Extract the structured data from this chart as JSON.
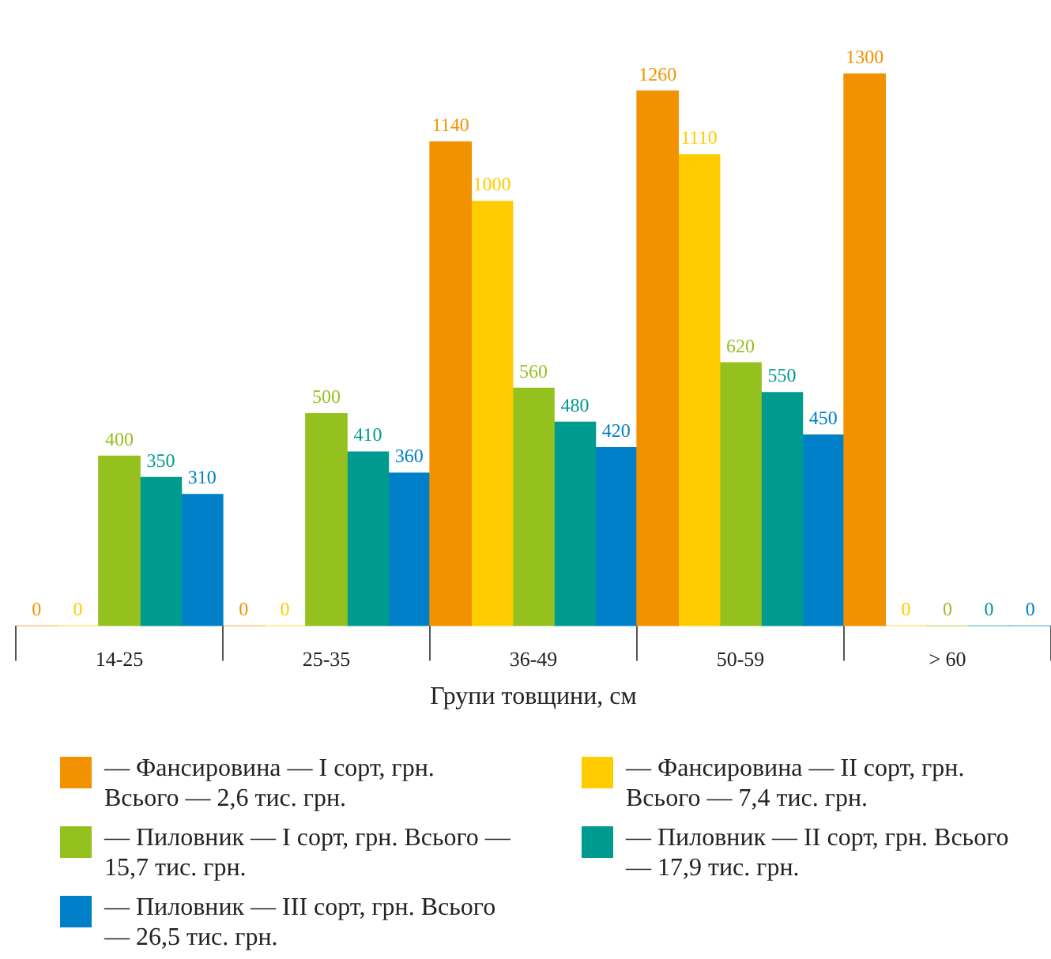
{
  "chart_data": {
    "type": "bar",
    "xlabel": "Групи товщини, см",
    "categories": [
      "14-25",
      "25-35",
      "36-49",
      "50-59",
      "> 60"
    ],
    "series": [
      {
        "name": "— Фансировина — I сорт, грн. Всього — 2,6 тис. грн.",
        "color": "#f39200",
        "values": [
          0,
          0,
          1140,
          1260,
          1300
        ]
      },
      {
        "name": "— Фансировина — II сорт, грн. Всього — 7,4 тис. грн.",
        "color": "#ffcc00",
        "values": [
          0,
          0,
          1000,
          1110,
          0
        ]
      },
      {
        "name": "— Пиловник — I сорт, грн. Всього — 15,7 тис. грн.",
        "color": "#95c11f",
        "values": [
          400,
          500,
          560,
          620,
          0
        ]
      },
      {
        "name": "— Пиловник — II сорт, грн. Всього — 17,9 тис. грн.",
        "color": "#009b8f",
        "values": [
          350,
          410,
          480,
          550,
          0
        ]
      },
      {
        "name": "— Пиловник — III сорт, грн. Всього — 26,5 тис. грн.",
        "color": "#0080c9",
        "values": [
          310,
          360,
          420,
          450,
          0
        ]
      }
    ],
    "data_labels": true,
    "grid": false,
    "legend": "bottom",
    "tick_labels": "x"
  }
}
